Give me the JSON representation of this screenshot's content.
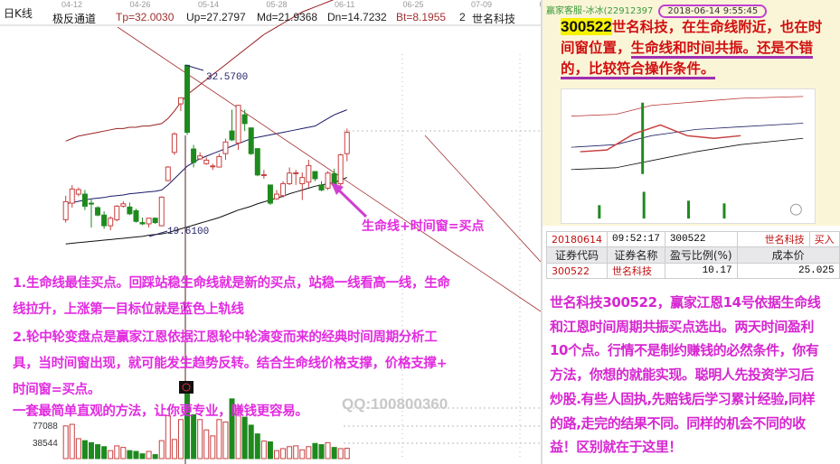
{
  "header": {
    "period_label": "日K线",
    "dates": [
      "04-12",
      "04-26",
      "05-14",
      "05-28",
      "06-11",
      "06-25",
      "07-09",
      "07-23"
    ],
    "indicator_name": "极反通道",
    "tp": "Tp=32.0030",
    "up": "Up=27.2797",
    "md": "Md=21.9368",
    "dn": "Dn=14.7232",
    "bt": "Bt=8.1955",
    "num": "2",
    "stock": "世名科技"
  },
  "colors": {
    "up": "#c84040",
    "down": "#1e8a1e",
    "upper_band": "#9a2020",
    "mid_band": "#1a1a6a",
    "lower_band": "#111111",
    "annotation": "#e22ce0"
  },
  "chart_data": {
    "type": "candlestick",
    "price_labels": {
      "high": "32.5700",
      "low": "19.6100"
    },
    "ohlc": [
      [
        20.23,
        22.15,
        20.0,
        21.67
      ],
      [
        21.55,
        22.99,
        21.19,
        22.68
      ],
      [
        22.27,
        22.8,
        22.1,
        22.63
      ],
      [
        22.27,
        22.6,
        21.0,
        21.31
      ],
      [
        21.55,
        21.9,
        19.6,
        21.5
      ],
      [
        21.19,
        21.3,
        20.5,
        20.6
      ],
      [
        20.6,
        20.9,
        19.5,
        19.75
      ],
      [
        19.75,
        20.5,
        19.4,
        20.35
      ],
      [
        20.23,
        21.4,
        20.1,
        21.31
      ],
      [
        21.31,
        21.7,
        21.2,
        21.5
      ],
      [
        21.24,
        21.6,
        20.6,
        20.7
      ],
      [
        20.95,
        21.1,
        20.0,
        20.1
      ],
      [
        20.0,
        20.4,
        19.8,
        19.9
      ],
      [
        19.9,
        20.4,
        19.62,
        20.35
      ],
      [
        20.35,
        20.4,
        19.9,
        20.0
      ],
      [
        19.75,
        22.1,
        19.7,
        22.03
      ],
      [
        23.35,
        24.5,
        23.3,
        24.43
      ],
      [
        25.6,
        27.2,
        25.4,
        27.07
      ],
      [
        29.47,
        30.0,
        28.9,
        29.95
      ],
      [
        32.55,
        32.57,
        27.0,
        27.2
      ],
      [
        25.87,
        26.2,
        24.4,
        24.8
      ],
      [
        25.08,
        25.6,
        25.0,
        25.32
      ],
      [
        24.7,
        25.2,
        24.6,
        24.98
      ],
      [
        24.5,
        24.7,
        24.2,
        24.52
      ],
      [
        24.43,
        25.5,
        24.4,
        25.27
      ],
      [
        25.5,
        26.7,
        25.0,
        26.43
      ],
      [
        27.31,
        29.0,
        26.5,
        26.6
      ],
      [
        26.35,
        29.4,
        25.8,
        29.35
      ],
      [
        28.6,
        29.0,
        27.3,
        27.9
      ],
      [
        27.55,
        27.6,
        25.4,
        25.5
      ],
      [
        25.9,
        25.9,
        23.7,
        23.8
      ],
      [
        23.8,
        24.2,
        23.5,
        23.82
      ],
      [
        23.0,
        23.0,
        21.4,
        21.55
      ],
      [
        21.9,
        22.6,
        21.8,
        22.27
      ],
      [
        22.15,
        23.3,
        22.0,
        23.1
      ],
      [
        23.1,
        24.4,
        23.0,
        23.95
      ],
      [
        23.95,
        24.2,
        23.0,
        23.97
      ],
      [
        23.1,
        24.0,
        21.8,
        23.6
      ],
      [
        23.23,
        25.0,
        22.8,
        24.55
      ],
      [
        24.07,
        24.1,
        23.3,
        23.5
      ],
      [
        23.0,
        23.3,
        22.5,
        22.6
      ],
      [
        22.75,
        24.1,
        22.6,
        23.95
      ],
      [
        23.9,
        24.3,
        22.8,
        23.0
      ],
      [
        23.1,
        25.5,
        22.9,
        25.4
      ],
      [
        25.5,
        27.5,
        24.9,
        27.2
      ]
    ],
    "upper_band": [
      26.5,
      26.7,
      26.9,
      27.0,
      27.1,
      27.2,
      27.3,
      27.4,
      27.5,
      27.5,
      27.6,
      27.6,
      27.7,
      27.7,
      27.8,
      27.9,
      28.3,
      28.9,
      29.6,
      30.2,
      30.6,
      31.0,
      31.4,
      31.8,
      32.2,
      32.6,
      33.0,
      33.4,
      33.8,
      34.2,
      34.6,
      35.0,
      35.3,
      35.6,
      35.9,
      36.2,
      36.5,
      36.8,
      37.0,
      37.2,
      37.4,
      37.6,
      37.8,
      38.0,
      38.2
    ],
    "mid_band": [
      21.5,
      21.6,
      21.7,
      21.8,
      21.9,
      21.95,
      22.0,
      22.1,
      22.15,
      22.2,
      22.3,
      22.35,
      22.4,
      22.45,
      22.5,
      22.6,
      23.0,
      23.5,
      24.0,
      24.5,
      24.8,
      25.1,
      25.3,
      25.5,
      25.7,
      25.9,
      26.1,
      26.3,
      26.5,
      26.7,
      26.8,
      26.9,
      27.0,
      27.1,
      27.2,
      27.3,
      27.4,
      27.5,
      27.6,
      27.7,
      28.0,
      28.3,
      28.6,
      28.8,
      29.0
    ],
    "lower_band": [
      18.3,
      18.35,
      18.4,
      18.45,
      18.5,
      18.55,
      18.6,
      18.65,
      18.7,
      18.75,
      18.8,
      18.85,
      18.9,
      19.0,
      19.05,
      19.1,
      19.2,
      19.35,
      19.5,
      19.65,
      19.8,
      19.95,
      20.1,
      20.25,
      20.4,
      20.6,
      20.8,
      21.0,
      21.15,
      21.3,
      21.5,
      21.65,
      21.8,
      21.95,
      22.1,
      22.3,
      22.45,
      22.6,
      22.75,
      22.9,
      23.0,
      23.1,
      23.2,
      23.4,
      23.6
    ],
    "volume_ticks": [
      "77088",
      "38544"
    ],
    "volume": [
      82000,
      86000,
      50000,
      45000,
      40000,
      35000,
      30000,
      20000,
      32000,
      28000,
      20000,
      18000,
      12000,
      18000,
      10000,
      45000,
      108000,
      48000,
      98000,
      180000,
      110000,
      98000,
      72000,
      57000,
      98000,
      92000,
      150000,
      125000,
      104000,
      84000,
      62000,
      44000,
      42000,
      20000,
      25000,
      30000,
      32000,
      22000,
      30000,
      38000,
      35000,
      40000,
      28000,
      25000,
      26000
    ]
  },
  "annotations": {
    "arrow_label": "生命线+时间窗=买点",
    "lines": [
      "1.生命线最佳买点。回踩站稳生命线就是新的买点，站稳一线看高一线，生命",
      "线拉升，上涨第一目标位就是蓝色上轨线",
      "2.轮中轮变盘点是赢家江恩依据江恩轮中轮演变而来的经典时间周期分析工",
      "具，当时间窗出现，就可能发生趋势反转。结合生命线价格支撑，价格支撑+",
      "时间窗=买点。",
      "一套最简单直观的方法，让你更专业，赚钱更容易。"
    ],
    "qq": "QQ:100800360"
  },
  "message": {
    "sender": "赢家客服-冰冰(22912397",
    "time": "2018-06-14 9:55:45",
    "code": "300522",
    "text1": "世名科技，在生命线附近，也在时间窗位置，",
    "text2": "生命线和时间共振。",
    "text3": "还是不错的，比较符合操作条件。"
  },
  "trade": {
    "row1": [
      "20180614",
      "09:52:17",
      "300522",
      "世名科技",
      "买入"
    ],
    "headers": [
      "证券代码",
      "证券名称",
      "盈亏比例(%)",
      "成本价"
    ],
    "row2": [
      "300522",
      "世名科技",
      "10.17",
      "25.025"
    ]
  },
  "summary": [
    "世名科技300522，赢家江恩14号依据生命线",
    "和江恩时间周期共振买点选出。两天时间盈利",
    "10个点。行情不是制约赚钱的必然条件，你有",
    "方法，你想的就能实现。聪明人先投资学习后",
    "炒股.有些人固执,先赔钱后学习累计经验,同样",
    "的路,走完的结果不同。同样的机会不同的收",
    "益！区别就在于这里！"
  ]
}
